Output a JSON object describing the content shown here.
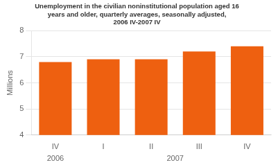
{
  "chart_data": {
    "type": "bar",
    "title": "Unemployment in the civilian noninstitutional population aged 16\nyears and older, quarterly averages, seasonally adjusted,\n2006 IV-2007 IV",
    "y_label": "Millions",
    "categories": [
      "IV",
      "I",
      "II",
      "III",
      "IV"
    ],
    "values": [
      6.8,
      6.9,
      6.9,
      7.2,
      7.4
    ],
    "color": "#EE6010",
    "ylim": [
      4,
      8
    ],
    "yticks": [
      4,
      5,
      6,
      7,
      8
    ],
    "grid": true,
    "annotations": [
      "2006",
      "2007"
    ]
  }
}
